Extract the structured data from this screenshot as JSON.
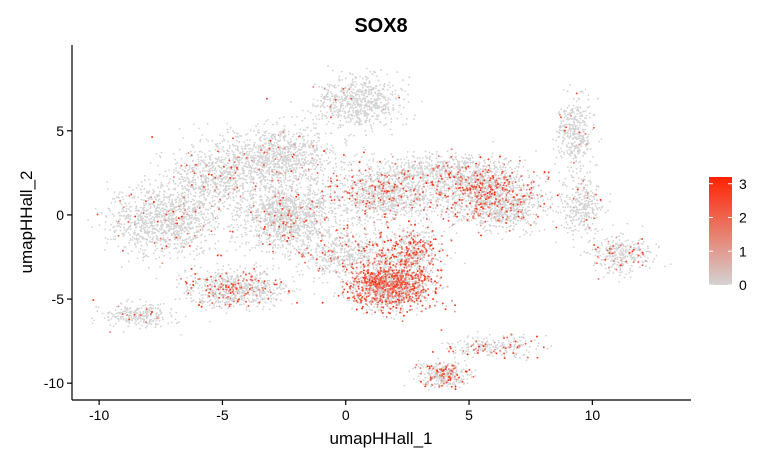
{
  "chart_data": {
    "type": "scatter",
    "title": "SOX8",
    "xlabel": "umapHHall_1",
    "ylabel": "umapHHall_2",
    "xlim": [
      -11.1,
      14.0
    ],
    "ylim": [
      -11.0,
      10.1
    ],
    "x_ticks": [
      -10,
      -5,
      0,
      5,
      10
    ],
    "y_ticks": [
      -10,
      -5,
      0,
      5
    ],
    "grid": false,
    "legend": {
      "placement": "right",
      "type": "colorbar",
      "ticks": [
        0,
        1,
        2,
        3
      ],
      "range": [
        0,
        3.2
      ],
      "low_color": "#d3d3d3",
      "high_color": "#ff2200"
    },
    "colors": {
      "low": "#d3d3d3",
      "high": "#ff2200"
    },
    "clusters": [
      {
        "name": "",
        "cx": -2.4,
        "cy": -0.1,
        "sx": 1.2,
        "sy": 1.3,
        "n": 1200,
        "expr": 0.05
      },
      {
        "name": "",
        "cx": -2.6,
        "cy": 3.5,
        "sx": 1.4,
        "sy": 1.2,
        "n": 900,
        "expr": 0.05
      },
      {
        "name": "",
        "cx": -5.2,
        "cy": 2.2,
        "sx": 1.3,
        "sy": 1.3,
        "n": 700,
        "expr": 0.06
      },
      {
        "name": "",
        "cx": -7.3,
        "cy": -0.3,
        "sx": 1.5,
        "sy": 1.4,
        "n": 1100,
        "expr": 0.04
      },
      {
        "name": "",
        "cx": -4.5,
        "cy": -4.4,
        "sx": 1.3,
        "sy": 0.7,
        "n": 700,
        "expr": 0.18
      },
      {
        "name": "",
        "cx": -8.4,
        "cy": -6.0,
        "sx": 0.9,
        "sy": 0.5,
        "n": 250,
        "expr": 0.05
      },
      {
        "name": "",
        "cx": 0.5,
        "cy": 6.7,
        "sx": 1.1,
        "sy": 1.0,
        "n": 650,
        "expr": 0.02
      },
      {
        "name": "",
        "cx": 0.0,
        "cy": -2.3,
        "sx": 1.4,
        "sy": 0.9,
        "n": 500,
        "expr": 0.12
      },
      {
        "name": "",
        "cx": 1.8,
        "cy": -4.2,
        "sx": 1.1,
        "sy": 0.9,
        "n": 1500,
        "expr": 0.48
      },
      {
        "name": "",
        "cx": 2.6,
        "cy": -2.2,
        "sx": 0.9,
        "sy": 0.9,
        "n": 500,
        "expr": 0.34
      },
      {
        "name": "",
        "cx": 1.6,
        "cy": 1.3,
        "sx": 1.5,
        "sy": 1.2,
        "n": 1100,
        "expr": 0.14
      },
      {
        "name": "",
        "cx": 5.6,
        "cy": 1.4,
        "sx": 1.4,
        "sy": 1.1,
        "n": 1100,
        "expr": 0.24
      },
      {
        "name": "",
        "cx": 6.6,
        "cy": 0.2,
        "sx": 1.0,
        "sy": 0.8,
        "n": 400,
        "expr": 0.06
      },
      {
        "name": "",
        "cx": 4.0,
        "cy": 2.6,
        "sx": 1.6,
        "sy": 0.6,
        "n": 450,
        "expr": 0.08
      },
      {
        "name": "",
        "cx": 9.3,
        "cy": 4.8,
        "sx": 0.5,
        "sy": 1.4,
        "n": 350,
        "expr": 0.03
      },
      {
        "name": "",
        "cx": 9.6,
        "cy": 0.6,
        "sx": 0.6,
        "sy": 1.2,
        "n": 300,
        "expr": 0.04
      },
      {
        "name": "",
        "cx": 11.2,
        "cy": -2.4,
        "sx": 0.8,
        "sy": 0.7,
        "n": 300,
        "expr": 0.08
      },
      {
        "name": "",
        "cx": 4.0,
        "cy": -9.5,
        "sx": 0.7,
        "sy": 0.5,
        "n": 350,
        "expr": 0.22
      },
      {
        "name": "",
        "cx": 6.0,
        "cy": -7.8,
        "sx": 1.2,
        "sy": 0.4,
        "n": 220,
        "expr": 0.24
      }
    ]
  }
}
